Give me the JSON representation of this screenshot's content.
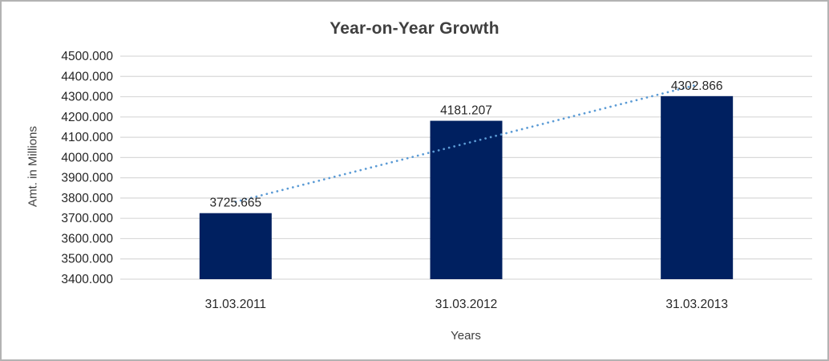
{
  "chart_data": {
    "type": "bar",
    "title": "Year-on-Year Growth",
    "xlabel": "Years",
    "ylabel": "Amt. in Millions",
    "categories": [
      "31.03.2011",
      "31.03.2012",
      "31.03.2013"
    ],
    "values": [
      3725.665,
      4181.207,
      4302.866
    ],
    "value_labels": [
      "3725.665",
      "4181.207",
      "4302.866"
    ],
    "ylim": [
      3400,
      4500
    ],
    "y_ticks": [
      {
        "value": 4500,
        "label": "4500.000"
      },
      {
        "value": 4400,
        "label": "4400.000"
      },
      {
        "value": 4300,
        "label": "4300.000"
      },
      {
        "value": 4200,
        "label": "4200.000"
      },
      {
        "value": 4100,
        "label": "4100.000"
      },
      {
        "value": 4000,
        "label": "4000.000"
      },
      {
        "value": 3900,
        "label": "3900.000"
      },
      {
        "value": 3800,
        "label": "3800.000"
      },
      {
        "value": 3700,
        "label": "3700.000"
      },
      {
        "value": 3600,
        "label": "3600.000"
      },
      {
        "value": 3500,
        "label": "3500.000"
      },
      {
        "value": 3400,
        "label": "3400.000"
      }
    ],
    "grid": "horizontal",
    "legend": "none",
    "trendline": {
      "type": "linear",
      "style": "dotted"
    },
    "colors": {
      "bar": "#002060",
      "trendline": "#5B9BD5",
      "gridline": "#D9D9D9",
      "tick_text": "#262626",
      "label_text": "#262626",
      "title_text": "#404040",
      "frame_border": "#B3B3B3"
    }
  }
}
